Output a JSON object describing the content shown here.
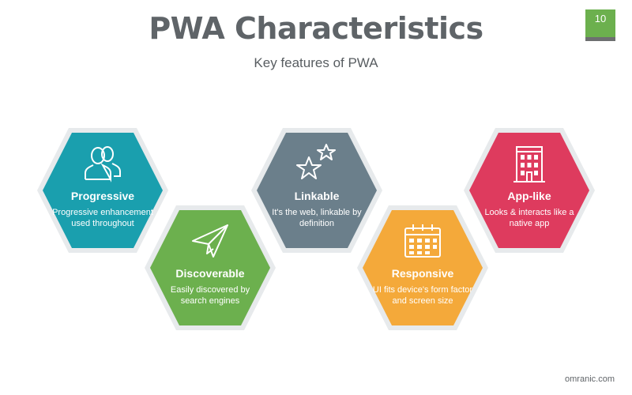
{
  "header": {
    "title": "PWA Characteristics",
    "subtitle": "Key features of PWA",
    "page_number": "10"
  },
  "features": [
    {
      "title": "Progressive",
      "description": "Progressive enhancement used throughout",
      "icon": "users-icon",
      "color": "#1a9fae"
    },
    {
      "title": "Discoverable",
      "description": "Easily discovered by search engines",
      "icon": "paper-plane-icon",
      "color": "#6cb04e"
    },
    {
      "title": "Linkable",
      "description": "It's the web, linkable by definition",
      "icon": "stars-icon",
      "color": "#6b7f8b"
    },
    {
      "title": "Responsive",
      "description": "UI fits device's form factor and screen size",
      "icon": "calendar-icon",
      "color": "#f4a93a"
    },
    {
      "title": "App-like",
      "description": "Looks & interacts like a native app",
      "icon": "building-icon",
      "color": "#de3b5e"
    }
  ],
  "footer": {
    "source": "omranic.com"
  }
}
